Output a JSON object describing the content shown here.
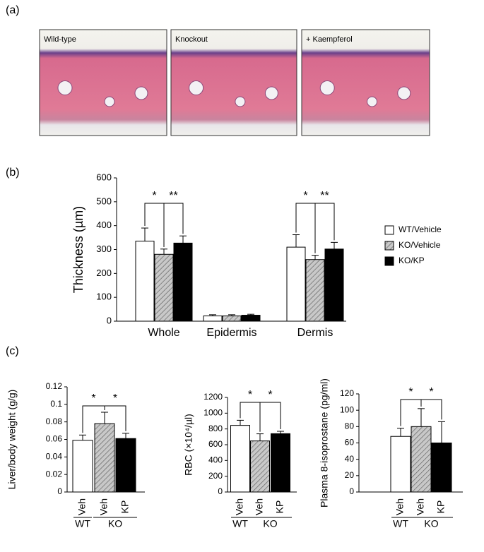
{
  "panels": [
    "(a)",
    "(b)",
    "(c)"
  ],
  "images": [
    {
      "label": "Wild-type"
    },
    {
      "label": "Knockout"
    },
    {
      "label": "+ Kaempferol"
    }
  ],
  "chart_data": [
    {
      "type": "bar",
      "y_label": "Thickness (µm)",
      "categories": [
        "Whole",
        "Epidermis",
        "Dermis"
      ],
      "series": [
        {
          "name": "WT/Vehicle",
          "color": "#ffffff",
          "hatch": false,
          "values": [
            335,
            22,
            310
          ],
          "errors": [
            55,
            5,
            52
          ]
        },
        {
          "name": "KO/Vehicle",
          "color": "#c0c0c0",
          "hatch": true,
          "values": [
            280,
            22,
            258
          ],
          "errors": [
            22,
            5,
            18
          ]
        },
        {
          "name": "KO/KP",
          "color": "#000000",
          "hatch": false,
          "values": [
            327,
            25,
            302
          ],
          "errors": [
            30,
            4,
            28
          ]
        }
      ],
      "ylim": [
        0,
        600
      ],
      "yticks": [
        0,
        100,
        200,
        300,
        400,
        500,
        600
      ],
      "annotations": [
        "*",
        "**",
        "*",
        "**"
      ],
      "legend": "right"
    },
    {
      "type": "bar",
      "y_label": "Liver/body weight (g/g)",
      "categories": [
        "Veh",
        "Veh",
        "KP"
      ],
      "groups": [
        "WT",
        "KO"
      ],
      "values": [
        0.059,
        0.078,
        0.061
      ],
      "errors": [
        0.006,
        0.013,
        0.006
      ],
      "colors": [
        "#ffffff",
        "#c0c0c0",
        "#000000"
      ],
      "hatch": [
        false,
        true,
        false
      ],
      "ylim": [
        0,
        0.12
      ],
      "yticks": [
        0,
        0.02,
        0.04,
        0.06,
        0.08,
        0.1,
        0.12
      ],
      "annotations": [
        "*",
        "*"
      ]
    },
    {
      "type": "bar",
      "y_label": "RBC (×10⁴/µl)",
      "categories": [
        "Veh",
        "Veh",
        "KP"
      ],
      "groups": [
        "WT",
        "KO"
      ],
      "values": [
        845,
        648,
        740
      ],
      "errors": [
        65,
        90,
        30
      ],
      "colors": [
        "#ffffff",
        "#c0c0c0",
        "#000000"
      ],
      "hatch": [
        false,
        true,
        false
      ],
      "ylim": [
        0,
        1200
      ],
      "yticks": [
        0,
        200,
        400,
        600,
        800,
        1000,
        1200
      ],
      "annotations": [
        "*",
        "*"
      ]
    },
    {
      "type": "bar",
      "y_label": "Plasma 8-isoprostane (pg/ml)",
      "categories": [
        "Veh",
        "Veh",
        "KP"
      ],
      "groups": [
        "WT",
        "KO"
      ],
      "values": [
        68,
        80,
        60
      ],
      "errors": [
        10,
        22,
        26
      ],
      "colors": [
        "#ffffff",
        "#c0c0c0",
        "#000000"
      ],
      "hatch": [
        false,
        true,
        false
      ],
      "ylim": [
        0,
        120
      ],
      "yticks": [
        0,
        20,
        40,
        60,
        80,
        100,
        120
      ],
      "annotations": [
        "*",
        "*"
      ]
    }
  ]
}
